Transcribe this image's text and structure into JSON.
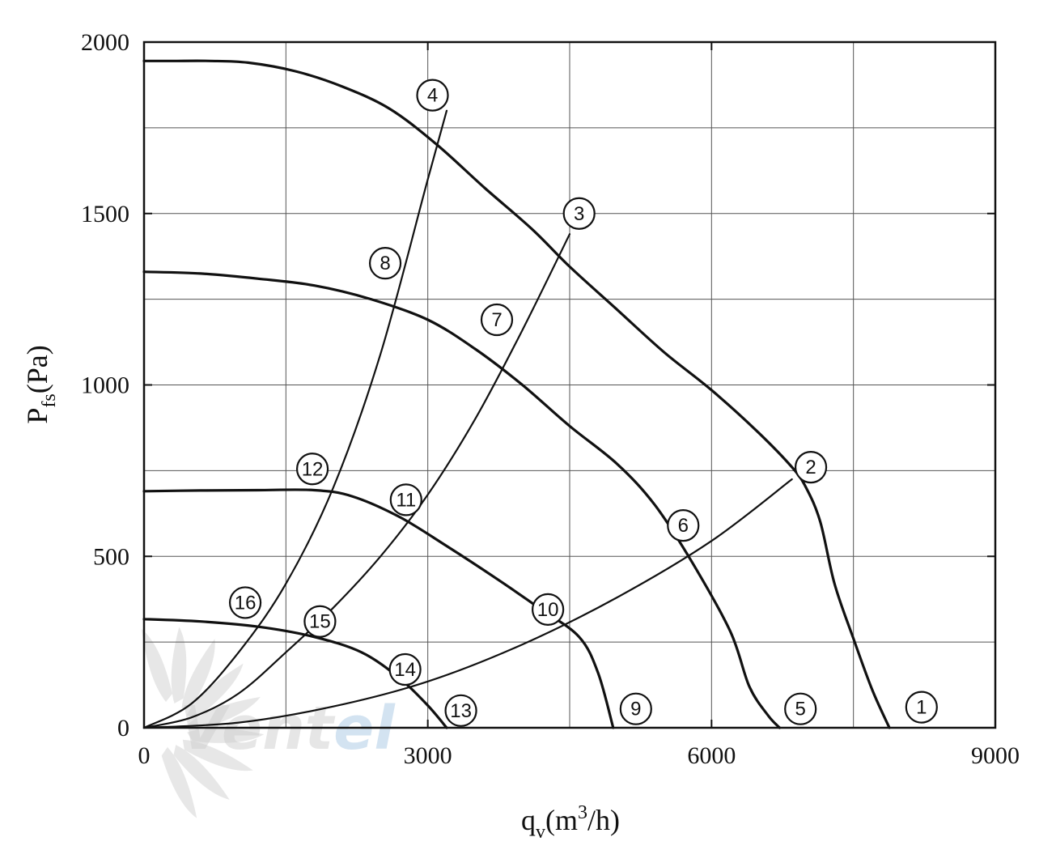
{
  "chart_data": {
    "type": "line",
    "xlabel": "q_v(m^3/h)",
    "xlabel_parts": {
      "main": "q",
      "sub": "v",
      "mid": "(m",
      "sup": "3",
      "end": "/h)"
    },
    "ylabel": "P_fs(Pa)",
    "ylabel_parts": {
      "main": "P",
      "sub": "fs",
      "end": "(Pa)"
    },
    "xlim": [
      0,
      9000
    ],
    "ylim": [
      0,
      2000
    ],
    "x_ticks": [
      0,
      3000,
      6000,
      9000
    ],
    "x_tick_labels": [
      "0",
      "3000",
      "6000",
      "9000"
    ],
    "y_ticks": [
      0,
      500,
      1000,
      1500,
      2000
    ],
    "y_tick_labels": [
      "0",
      "500",
      "1000",
      "1500",
      "2000"
    ],
    "grid": true,
    "watermark_text": "Ventel",
    "series": [
      {
        "name": "1",
        "kind": "fan-curve",
        "points": [
          [
            0,
            1945
          ],
          [
            300,
            1945
          ],
          [
            700,
            1945
          ],
          [
            1100,
            1940
          ],
          [
            1600,
            1915
          ],
          [
            2100,
            1870
          ],
          [
            2600,
            1805
          ],
          [
            3100,
            1700
          ],
          [
            3600,
            1575
          ],
          [
            4100,
            1455
          ],
          [
            4500,
            1345
          ],
          [
            5000,
            1220
          ],
          [
            5500,
            1095
          ],
          [
            6000,
            985
          ],
          [
            6500,
            860
          ],
          [
            6850,
            760
          ],
          [
            7000,
            700
          ],
          [
            7150,
            600
          ],
          [
            7300,
            420
          ],
          [
            7500,
            260
          ],
          [
            7700,
            110
          ],
          [
            7880,
            0
          ]
        ]
      },
      {
        "name": "5",
        "kind": "fan-curve",
        "points": [
          [
            0,
            1330
          ],
          [
            600,
            1325
          ],
          [
            1200,
            1310
          ],
          [
            1800,
            1290
          ],
          [
            2400,
            1250
          ],
          [
            3000,
            1190
          ],
          [
            3500,
            1105
          ],
          [
            4000,
            1000
          ],
          [
            4500,
            880
          ],
          [
            5000,
            770
          ],
          [
            5400,
            650
          ],
          [
            5800,
            480
          ],
          [
            6200,
            280
          ],
          [
            6400,
            120
          ],
          [
            6600,
            35
          ],
          [
            6720,
            0
          ]
        ]
      },
      {
        "name": "9",
        "kind": "fan-curve",
        "points": [
          [
            0,
            690
          ],
          [
            600,
            692
          ],
          [
            1200,
            693
          ],
          [
            1800,
            693
          ],
          [
            2200,
            675
          ],
          [
            2700,
            615
          ],
          [
            3200,
            530
          ],
          [
            3700,
            440
          ],
          [
            4200,
            345
          ],
          [
            4600,
            265
          ],
          [
            4800,
            160
          ],
          [
            4960,
            0
          ]
        ]
      },
      {
        "name": "13",
        "kind": "fan-curve",
        "points": [
          [
            0,
            317
          ],
          [
            600,
            310
          ],
          [
            1200,
            295
          ],
          [
            1800,
            265
          ],
          [
            2300,
            220
          ],
          [
            2700,
            145
          ],
          [
            3000,
            65
          ],
          [
            3200,
            0
          ]
        ]
      },
      {
        "name": "2-6-10-14",
        "kind": "system-curve",
        "points": [
          [
            0,
            0
          ],
          [
            1000,
            15
          ],
          [
            2000,
            62
          ],
          [
            3000,
            135
          ],
          [
            4000,
            243
          ],
          [
            5000,
            380
          ],
          [
            6000,
            545
          ],
          [
            6850,
            725
          ]
        ]
      },
      {
        "name": "3-7-11-15",
        "kind": "system-curve",
        "points": [
          [
            0,
            0
          ],
          [
            500,
            30
          ],
          [
            1000,
            100
          ],
          [
            1500,
            220
          ],
          [
            2000,
            350
          ],
          [
            2500,
            500
          ],
          [
            3000,
            680
          ],
          [
            3500,
            900
          ],
          [
            4000,
            1160
          ],
          [
            4500,
            1440
          ]
        ]
      },
      {
        "name": "4-8-12-16",
        "kind": "system-curve",
        "points": [
          [
            0,
            0
          ],
          [
            500,
            70
          ],
          [
            1000,
            220
          ],
          [
            1500,
            420
          ],
          [
            2000,
            700
          ],
          [
            2500,
            1090
          ],
          [
            3000,
            1600
          ],
          [
            3200,
            1800
          ]
        ]
      }
    ],
    "markers": [
      {
        "label": "1",
        "x": 8220,
        "y": 60
      },
      {
        "label": "2",
        "x": 7050,
        "y": 760
      },
      {
        "label": "3",
        "x": 4600,
        "y": 1500
      },
      {
        "label": "4",
        "x": 3050,
        "y": 1845
      },
      {
        "label": "5",
        "x": 6940,
        "y": 55
      },
      {
        "label": "6",
        "x": 5700,
        "y": 590
      },
      {
        "label": "7",
        "x": 3730,
        "y": 1190
      },
      {
        "label": "8",
        "x": 2550,
        "y": 1355
      },
      {
        "label": "9",
        "x": 5200,
        "y": 55
      },
      {
        "label": "10",
        "x": 4270,
        "y": 345
      },
      {
        "label": "11",
        "x": 2770,
        "y": 665
      },
      {
        "label": "12",
        "x": 1780,
        "y": 755
      },
      {
        "label": "13",
        "x": 3350,
        "y": 50
      },
      {
        "label": "14",
        "x": 2760,
        "y": 170
      },
      {
        "label": "15",
        "x": 1860,
        "y": 310
      },
      {
        "label": "16",
        "x": 1070,
        "y": 365
      }
    ]
  }
}
